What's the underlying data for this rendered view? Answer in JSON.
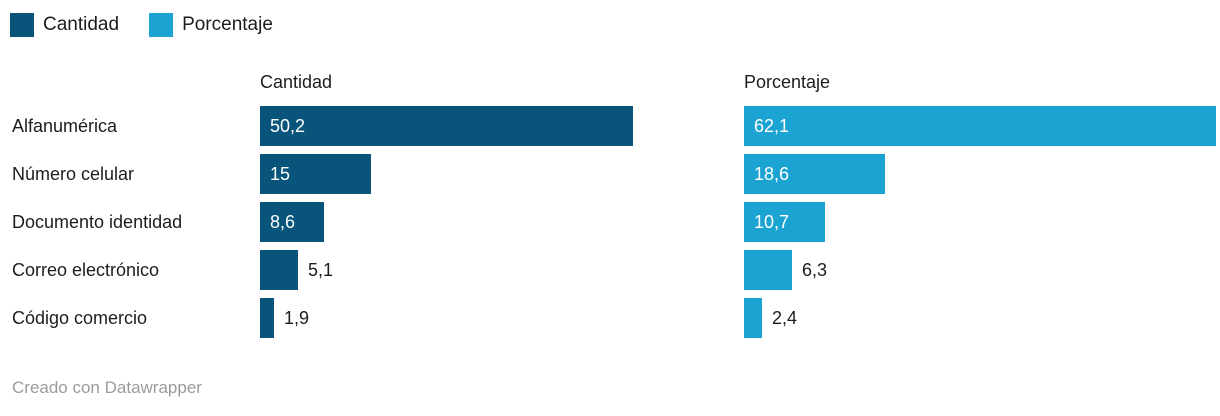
{
  "colors": {
    "cantidad": "#09547a",
    "porcentaje": "#1ba3d2",
    "text": "#1d1d1d",
    "value_inside": "#ffffff",
    "footer_text": "#9b9b9b",
    "background": "#ffffff"
  },
  "legend": {
    "items": [
      {
        "label": "Cantidad",
        "color": "#09547a"
      },
      {
        "label": "Porcentaje",
        "color": "#1ba3d2"
      }
    ]
  },
  "chart_data": {
    "type": "bar",
    "orientation": "horizontal",
    "grid": false,
    "legend_position": "top-left",
    "categories": [
      "Alfanumérica",
      "Número celular",
      "Documento identidad",
      "Correo electrónico",
      "Código comercio"
    ],
    "series": [
      {
        "name": "Cantidad",
        "color": "#09547a",
        "values": [
          50.2,
          15,
          8.6,
          5.1,
          1.9
        ],
        "value_labels": [
          "50,2",
          "15",
          "8,6",
          "5,1",
          "1,9"
        ],
        "axis_max": 50.2
      },
      {
        "name": "Porcentaje",
        "color": "#1ba3d2",
        "values": [
          62.1,
          18.6,
          10.7,
          6.3,
          2.4
        ],
        "value_labels": [
          "62,1",
          "18,6",
          "10,7",
          "6,3",
          "2,4"
        ],
        "axis_max": 62.1
      }
    ],
    "value_format": "decimal-comma"
  },
  "footer": {
    "credit": "Creado con Datawrapper"
  }
}
